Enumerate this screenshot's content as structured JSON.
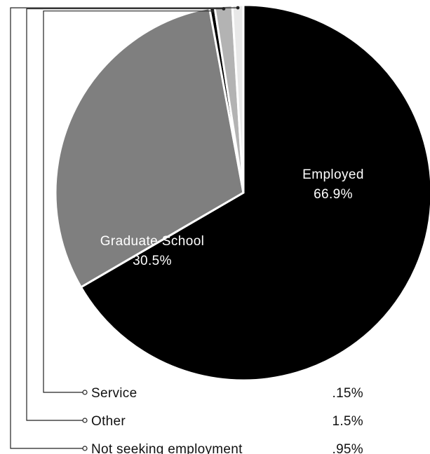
{
  "chart_data": {
    "type": "pie",
    "slices": [
      {
        "name": "Employed",
        "value": 66.9,
        "display": "66.9%",
        "color": "#000000",
        "label_inside": true
      },
      {
        "name": "Graduate School",
        "value": 30.5,
        "display": "30.5%",
        "color": "#7f7f7f",
        "label_inside": true
      },
      {
        "name": "Service",
        "value": 0.15,
        "display": ".15%",
        "color": "#000000",
        "label_inside": false
      },
      {
        "name": "Other",
        "value": 1.5,
        "display": "1.5%",
        "color": "#b3b3b3",
        "label_inside": false
      },
      {
        "name": "Not seeking employment",
        "value": 0.95,
        "display": ".95%",
        "color": "#e8e8e8",
        "label_inside": false
      }
    ],
    "legend_position": "bottom"
  }
}
